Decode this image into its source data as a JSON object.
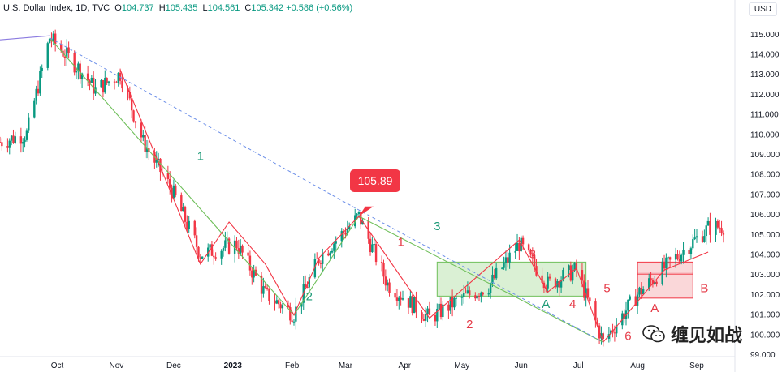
{
  "header": {
    "symbol": "U.S. Dollar Index, 1D, TVC",
    "o_label": "O",
    "o_value": "104.737",
    "h_label": "H",
    "h_value": "105.435",
    "l_label": "L",
    "l_value": "104.561",
    "c_label": "C",
    "c_value": "105.342",
    "change": "+0.586 (+0.56%)"
  },
  "currency_button": "USD",
  "callout": "105.89",
  "watermark": "缠见如战",
  "colors": {
    "up": "#089981",
    "down": "#f23645",
    "green_line": "#6fbf5a",
    "red_line": "#f23645",
    "blue_dash": "#6b8ee8",
    "box_green": "#cdebc5",
    "box_red": "#f8c9cc"
  },
  "chart_data": {
    "type": "candlestick",
    "ylim": [
      99.0,
      115.8
    ],
    "y_ticks": [
      "115.000",
      "114.000",
      "113.000",
      "112.000",
      "111.000",
      "110.000",
      "109.000",
      "108.000",
      "107.000",
      "106.000",
      "105.000",
      "104.000",
      "103.000",
      "102.000",
      "101.000",
      "100.000",
      "99.000"
    ],
    "x_labels": [
      "Oct",
      "Nov",
      "Dec",
      "2023",
      "Feb",
      "Mar",
      "Apr",
      "May",
      "Jun",
      "Jul",
      "Aug",
      "Sep"
    ],
    "x_label_dates": [
      "2022-10-01",
      "2022-11-01",
      "2022-12-01",
      "2023-01-01",
      "2023-02-01",
      "2023-03-01",
      "2023-04-01",
      "2023-05-01",
      "2023-06-01",
      "2023-07-01",
      "2023-08-01",
      "2023-09-01"
    ],
    "x_range_dates": [
      "2022-09-01",
      "2023-09-21"
    ],
    "price_path": [
      [
        "2022-09-01",
        109.6
      ],
      [
        "2022-09-15",
        110.0
      ],
      [
        "2022-09-27",
        114.8
      ],
      [
        "2022-10-13",
        113.2
      ],
      [
        "2022-10-21",
        112.2
      ],
      [
        "2022-11-03",
        113.0
      ],
      [
        "2022-11-15",
        109.6
      ],
      [
        "2022-11-30",
        107.2
      ],
      [
        "2022-12-15",
        104.0
      ],
      [
        "2023-01-03",
        104.5
      ],
      [
        "2023-01-18",
        102.0
      ],
      [
        "2023-02-02",
        101.0
      ],
      [
        "2023-02-15",
        103.8
      ],
      [
        "2023-03-08",
        105.89
      ],
      [
        "2023-03-23",
        102.5
      ],
      [
        "2023-04-14",
        100.8
      ],
      [
        "2023-05-01",
        101.8
      ],
      [
        "2023-05-15",
        102.4
      ],
      [
        "2023-05-31",
        104.5
      ],
      [
        "2023-06-15",
        102.5
      ],
      [
        "2023-06-30",
        103.2
      ],
      [
        "2023-07-14",
        99.6
      ],
      [
        "2023-08-01",
        102.0
      ],
      [
        "2023-08-15",
        103.3
      ],
      [
        "2023-09-07",
        105.3
      ],
      [
        "2023-09-15",
        105.4
      ]
    ],
    "lines": [
      {
        "color": "green",
        "points": [
          [
            "2022-09-27",
            114.8
          ],
          [
            "2023-02-02",
            100.95
          ],
          [
            "2023-03-08",
            105.89
          ],
          [
            "2023-07-14",
            99.6
          ]
        ]
      },
      {
        "color": "red",
        "points": [
          [
            "2022-11-03",
            113.2
          ],
          [
            "2022-12-15",
            103.5
          ],
          [
            "2022-12-30",
            105.6
          ],
          [
            "2023-01-18",
            103.5
          ],
          [
            "2023-02-02",
            100.95
          ],
          [
            "2023-02-15",
            103.8
          ],
          [
            "2023-03-08",
            105.89
          ],
          [
            "2023-04-14",
            100.8
          ],
          [
            "2023-05-31",
            104.7
          ],
          [
            "2023-06-15",
            102.1
          ],
          [
            "2023-06-30",
            103.3
          ],
          [
            "2023-07-14",
            99.6
          ],
          [
            "2023-08-15",
            103.2
          ],
          [
            "2023-09-07",
            104.1
          ]
        ]
      },
      {
        "color": "blue-dashed",
        "points": [
          [
            "2022-09-27",
            114.8
          ],
          [
            "2023-03-08",
            106.2
          ],
          [
            "2023-07-14",
            99.6
          ]
        ]
      },
      {
        "color": "purple",
        "points": [
          [
            "2022-09-01",
            114.7
          ],
          [
            "2022-09-27",
            114.9
          ]
        ]
      }
    ],
    "boxes": [
      {
        "color": "green",
        "x": [
          "2023-04-18",
          "2023-07-05"
        ],
        "y": [
          101.9,
          103.6
        ]
      },
      {
        "color": "red",
        "x": [
          "2023-08-01",
          "2023-08-30"
        ],
        "y": [
          101.8,
          103.1
        ]
      },
      {
        "color": "red",
        "x": [
          "2023-08-01",
          "2023-08-30"
        ],
        "y": [
          103.0,
          103.6
        ]
      }
    ],
    "annotations": [
      {
        "text": "1",
        "color": "green",
        "date": "2022-12-15",
        "y": 108.7
      },
      {
        "text": "2",
        "color": "green",
        "date": "2023-02-10",
        "y": 101.7
      },
      {
        "text": "3",
        "color": "green",
        "date": "2023-04-18",
        "y": 105.2
      },
      {
        "text": "1",
        "color": "red",
        "date": "2023-03-30",
        "y": 104.4
      },
      {
        "text": "2",
        "color": "red",
        "date": "2023-05-05",
        "y": 100.3
      },
      {
        "text": "3",
        "color": "red",
        "date": "2023-06-07",
        "y": 103.8
      },
      {
        "text": "4",
        "color": "red",
        "date": "2023-06-28",
        "y": 101.3
      },
      {
        "text": "5",
        "color": "red",
        "date": "2023-07-16",
        "y": 102.1
      },
      {
        "text": "6",
        "color": "red",
        "date": "2023-07-27",
        "y": 99.7
      },
      {
        "text": "A",
        "color": "green",
        "date": "2023-06-14",
        "y": 101.3
      },
      {
        "text": "A",
        "color": "red",
        "date": "2023-08-10",
        "y": 101.1
      },
      {
        "text": "B",
        "color": "red",
        "date": "2023-09-05",
        "y": 102.1
      }
    ]
  }
}
